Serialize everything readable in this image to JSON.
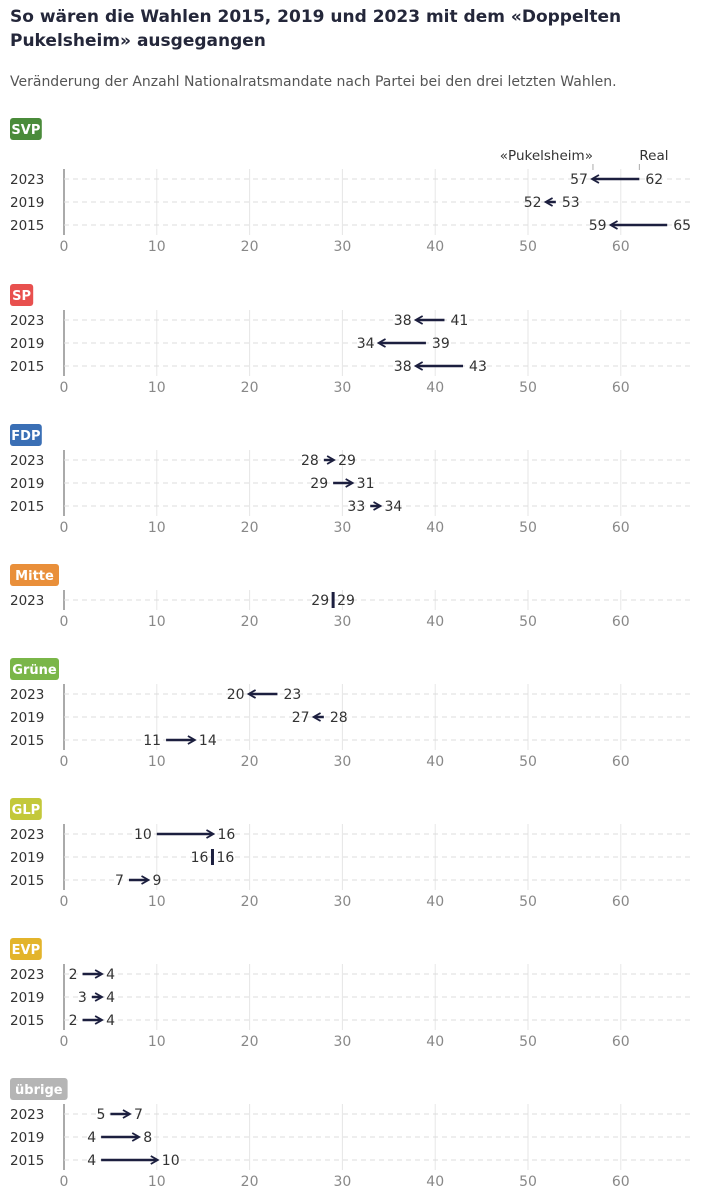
{
  "header": {
    "title": "So wären die Wahlen 2015, 2019 und 2023 mit dem «Doppelten Pukelsheim» ausgegangen",
    "subtitle": "Veränderung der Anzahl Nationalratsmandate nach Partei bei den drei letzten Wahlen."
  },
  "chart_data": {
    "type": "arrow-dot",
    "legend": {
      "from_label": "Real",
      "to_label": "«Pukelsheim»",
      "placement": "top-right of first panel"
    },
    "xlim": [
      0,
      67
    ],
    "x_ticks": [
      0,
      10,
      20,
      30,
      40,
      50,
      60
    ],
    "grid": true,
    "arrow_color": "#1c1f3f",
    "parties": [
      {
        "name": "SVP",
        "color": "#4a8b3a",
        "rows": [
          {
            "year": "2023",
            "real": 62,
            "pukelsheim": 57
          },
          {
            "year": "2019",
            "real": 53,
            "pukelsheim": 52
          },
          {
            "year": "2015",
            "real": 65,
            "pukelsheim": 59
          }
        ]
      },
      {
        "name": "SP",
        "color": "#e8504e",
        "rows": [
          {
            "year": "2023",
            "real": 41,
            "pukelsheim": 38
          },
          {
            "year": "2019",
            "real": 39,
            "pukelsheim": 34
          },
          {
            "year": "2015",
            "real": 43,
            "pukelsheim": 38
          }
        ]
      },
      {
        "name": "FDP",
        "color": "#3a6fb5",
        "rows": [
          {
            "year": "2023",
            "real": 28,
            "pukelsheim": 29
          },
          {
            "year": "2019",
            "real": 29,
            "pukelsheim": 31
          },
          {
            "year": "2015",
            "real": 33,
            "pukelsheim": 34
          }
        ]
      },
      {
        "name": "Mitte",
        "color": "#e98f3a",
        "rows": [
          {
            "year": "2023",
            "real": 29,
            "pukelsheim": 29
          }
        ]
      },
      {
        "name": "Grüne",
        "color": "#7ab648",
        "rows": [
          {
            "year": "2023",
            "real": 23,
            "pukelsheim": 20
          },
          {
            "year": "2019",
            "real": 28,
            "pukelsheim": 27
          },
          {
            "year": "2015",
            "real": 11,
            "pukelsheim": 14
          }
        ]
      },
      {
        "name": "GLP",
        "color": "#c3c83a",
        "rows": [
          {
            "year": "2023",
            "real": 10,
            "pukelsheim": 16
          },
          {
            "year": "2019",
            "real": 16,
            "pukelsheim": 16
          },
          {
            "year": "2015",
            "real": 7,
            "pukelsheim": 9
          }
        ]
      },
      {
        "name": "EVP",
        "color": "#e3b42b",
        "rows": [
          {
            "year": "2023",
            "real": 2,
            "pukelsheim": 4
          },
          {
            "year": "2019",
            "real": 3,
            "pukelsheim": 4
          },
          {
            "year": "2015",
            "real": 2,
            "pukelsheim": 4
          }
        ]
      },
      {
        "name": "übrige",
        "color": "#b5b5b5",
        "rows": [
          {
            "year": "2023",
            "real": 5,
            "pukelsheim": 7
          },
          {
            "year": "2019",
            "real": 4,
            "pukelsheim": 8
          },
          {
            "year": "2015",
            "real": 4,
            "pukelsheim": 10
          }
        ]
      }
    ]
  }
}
